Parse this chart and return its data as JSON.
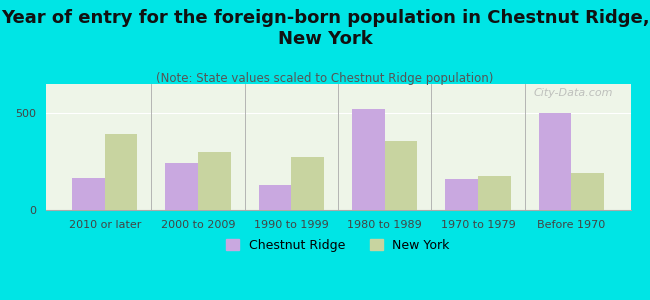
{
  "title": "Year of entry for the foreign-born population in Chestnut Ridge,\nNew York",
  "subtitle": "(Note: State values scaled to Chestnut Ridge population)",
  "categories": [
    "2010 or later",
    "2000 to 2009",
    "1990 to 1999",
    "1980 to 1989",
    "1970 to 1979",
    "Before 1970"
  ],
  "chestnut_ridge": [
    165,
    245,
    130,
    520,
    160,
    500
  ],
  "new_york": [
    390,
    300,
    275,
    355,
    175,
    190
  ],
  "bar_color_cr": "#c9a8e0",
  "bar_color_ny": "#c8d4a0",
  "background_color": "#00e5e5",
  "plot_bg": "#eef5e8",
  "ylim": [
    0,
    650
  ],
  "yticks": [
    0,
    500
  ],
  "bar_width": 0.35,
  "title_fontsize": 13,
  "subtitle_fontsize": 8.5,
  "tick_fontsize": 8,
  "legend_fontsize": 9,
  "watermark": "City-Data.com"
}
